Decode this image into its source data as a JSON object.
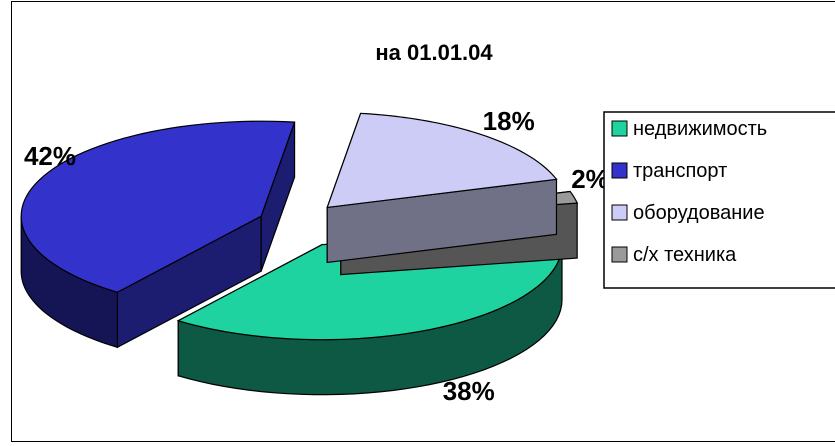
{
  "chart_data": {
    "type": "pie",
    "title": "на 01.01.04",
    "style": "3d-exploded",
    "legend_placement": "right",
    "categories": [
      "недвижимость",
      "транспорт",
      "оборудование",
      "с/х техника"
    ],
    "values": [
      38,
      42,
      18,
      2
    ],
    "data_labels": [
      "38%",
      "42%",
      "18%",
      "2%"
    ],
    "colors": {
      "недвижимость": "#1fd3a0",
      "транспорт": "#3333cc",
      "оборудование": "#ccccf6",
      "с/х техника": "#9a9a9a"
    }
  }
}
